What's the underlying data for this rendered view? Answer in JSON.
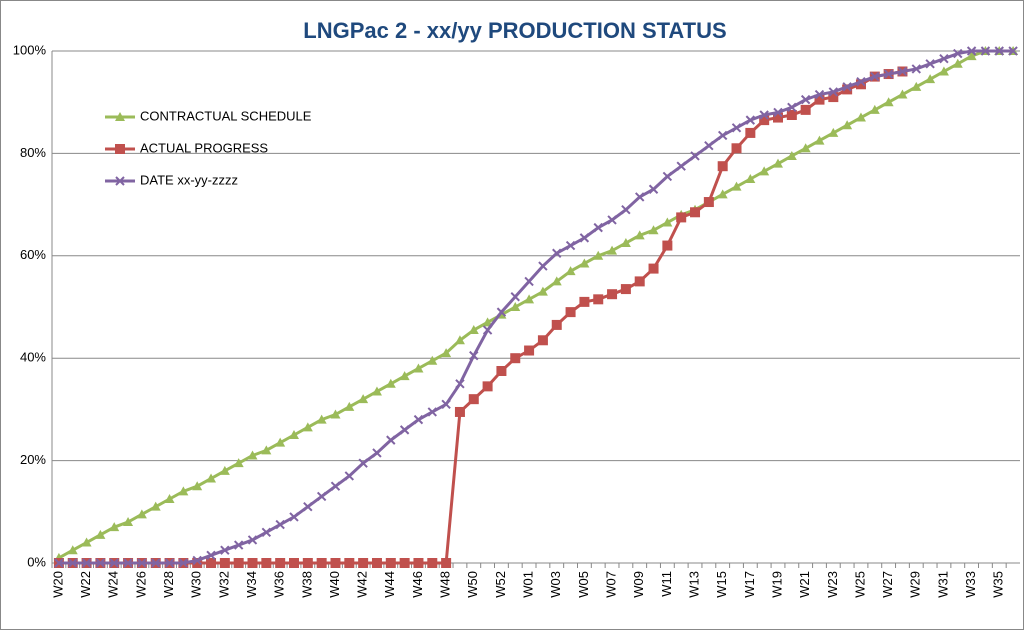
{
  "chart_data": {
    "type": "line",
    "title": "LNGPac 2  - xx/yy PRODUCTION STATUS",
    "categories": [
      "W20",
      null,
      "W22",
      null,
      "W24",
      null,
      "W26",
      null,
      "W28",
      null,
      "W30",
      null,
      "W32",
      null,
      "W34",
      null,
      "W36",
      null,
      "W38",
      null,
      "W40",
      null,
      "W42",
      null,
      "W44",
      null,
      "W46",
      null,
      "W48",
      null,
      "W50",
      null,
      "W52",
      null,
      "W01",
      null,
      "W03",
      null,
      "W05",
      null,
      "W07",
      null,
      "W09",
      null,
      "W11",
      null,
      "W13",
      null,
      "W15",
      null,
      "W17",
      null,
      "W19",
      null,
      "W21",
      null,
      "W23",
      null,
      "W25",
      null,
      "W27",
      null,
      "W29",
      null,
      "W31",
      null,
      "W33",
      null,
      "W35",
      null
    ],
    "series": [
      {
        "name": "CONTRACTUAL SCHEDULE",
        "color": "#9bbb59",
        "marker": "triangle",
        "values": [
          1,
          2.5,
          4,
          5.5,
          7,
          8,
          9.5,
          11,
          12.5,
          14,
          15,
          16.5,
          18,
          19.5,
          21,
          22,
          23.5,
          25,
          26.5,
          28,
          29,
          30.5,
          32,
          33.5,
          35,
          36.5,
          38,
          39.5,
          41,
          43.5,
          45.5,
          47,
          48.5,
          50,
          51.5,
          53,
          55,
          57,
          58.5,
          60,
          61,
          62.5,
          64,
          65,
          66.5,
          68,
          69,
          70.5,
          72,
          73.5,
          75,
          76.5,
          78,
          79.5,
          81,
          82.5,
          84,
          85.5,
          87,
          88.5,
          90,
          91.5,
          93,
          94.5,
          96,
          97.5,
          99,
          100,
          100,
          100
        ]
      },
      {
        "name": "ACTUAL PROGRESS",
        "color": "#c0504d",
        "marker": "square",
        "values": [
          0,
          0,
          0,
          0,
          0,
          0,
          0,
          0,
          0,
          0,
          0,
          0,
          0,
          0,
          0,
          0,
          0,
          0,
          0,
          0,
          0,
          0,
          0,
          0,
          0,
          0,
          0,
          0,
          0,
          29.5,
          32,
          34.5,
          37.5,
          40,
          41.5,
          43.5,
          46.5,
          49,
          51,
          51.5,
          52.5,
          53.5,
          55,
          57.5,
          62,
          67.5,
          68.5,
          70.5,
          77.5,
          81,
          84,
          86.5,
          87,
          87.5,
          88.5,
          90.5,
          91,
          92.5,
          93.5,
          95,
          95.5,
          96,
          null,
          null,
          null,
          null,
          null,
          null,
          null,
          null
        ]
      },
      {
        "name": "DATE xx-yy-zzzz",
        "color": "#8064a2",
        "marker": "x",
        "values": [
          0,
          0,
          0,
          0,
          0,
          0,
          0,
          0,
          0,
          0,
          0.5,
          1.5,
          2.5,
          3.5,
          4.5,
          6,
          7.5,
          9,
          11,
          13,
          15,
          17,
          19.5,
          21.5,
          24,
          26,
          28,
          29.5,
          31,
          35,
          40.5,
          45.5,
          49,
          52,
          55,
          58,
          60.5,
          62,
          63.5,
          65.5,
          67,
          69,
          71.5,
          73,
          75.5,
          77.5,
          79.5,
          81.5,
          83.5,
          85,
          86.5,
          87.5,
          88,
          89,
          90.5,
          91.5,
          92,
          93,
          94,
          95,
          95.5,
          96,
          96.5,
          97.5,
          98.5,
          99.5,
          100,
          100,
          100,
          100
        ]
      }
    ],
    "ylim": [
      0,
      100
    ],
    "yticks": [
      {
        "value": 0,
        "label": "0%"
      },
      {
        "value": 20,
        "label": "20%"
      },
      {
        "value": 40,
        "label": "40%"
      },
      {
        "value": 60,
        "label": "60%"
      },
      {
        "value": 80,
        "label": "80%"
      },
      {
        "value": 100,
        "label": "100%"
      }
    ],
    "grid": true,
    "legend": "upper left"
  }
}
